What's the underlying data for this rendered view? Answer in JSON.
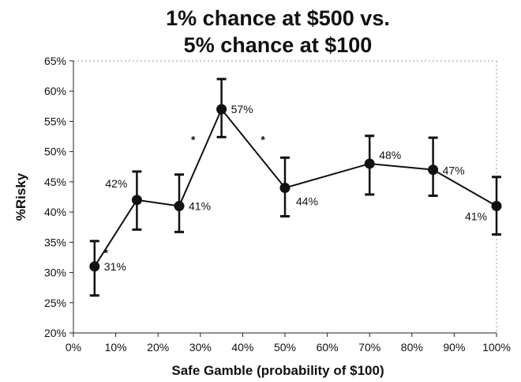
{
  "chart_data": {
    "type": "line",
    "title_lines": [
      "1% chance at $500 vs.",
      "5% chance at $100"
    ],
    "xlabel": "Safe Gamble (probability of $100)",
    "ylabel": "%Risky",
    "xlim": [
      0,
      100
    ],
    "ylim": [
      20,
      65
    ],
    "x_ticks": [
      0,
      10,
      20,
      30,
      40,
      50,
      60,
      70,
      80,
      90,
      100
    ],
    "x_tick_labels": [
      "0%",
      "10%",
      "20%",
      "30%",
      "40%",
      "50%",
      "60%",
      "70%",
      "80%",
      "90%",
      "100%"
    ],
    "y_ticks": [
      20,
      25,
      30,
      35,
      40,
      45,
      50,
      55,
      60,
      65
    ],
    "y_tick_labels": [
      "20%",
      "25%",
      "30%",
      "35%",
      "40%",
      "45%",
      "50%",
      "55%",
      "60%",
      "65%"
    ],
    "grid": false,
    "series": [
      {
        "x": [
          5,
          15,
          25,
          35,
          50,
          70,
          85,
          100
        ],
        "y": [
          31,
          42,
          41,
          57,
          44,
          48,
          47,
          41
        ],
        "error_low": [
          26.2,
          37.1,
          36.7,
          52.4,
          39.3,
          42.9,
          42.7,
          36.3
        ],
        "error_high": [
          35.2,
          46.7,
          46.2,
          62.0,
          49.0,
          52.6,
          52.3,
          45.8
        ],
        "labels": [
          "31%",
          "42%",
          "41%",
          "57%",
          "44%",
          "48%",
          "47%",
          "41%"
        ]
      }
    ],
    "annotations": [
      {
        "text": "*",
        "x": 7.7,
        "y": 33.3
      },
      {
        "text": "*",
        "x": 28.3,
        "y": 52.0
      },
      {
        "text": "*",
        "x": 44.8,
        "y": 52.0
      }
    ]
  }
}
